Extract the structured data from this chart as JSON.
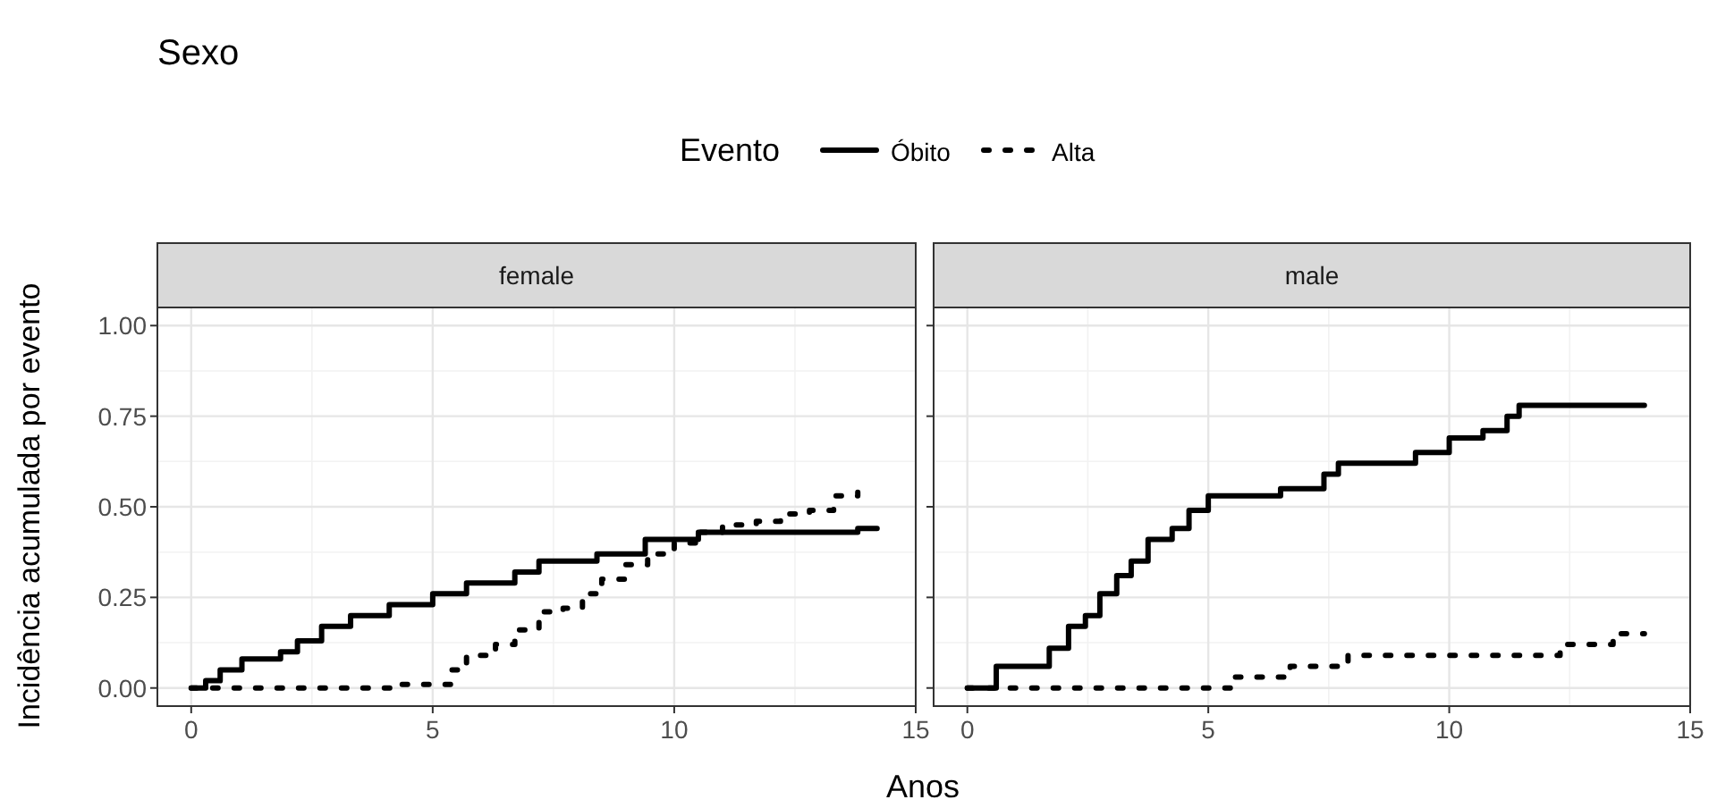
{
  "chart_data": [
    {
      "type": "step",
      "title": "Sexo",
      "subtitle": "female",
      "xlabel": "Anos",
      "ylabel": "Incidência acumulada por evento",
      "legend_title": "Evento",
      "legend": "top",
      "grid": true,
      "xlim": [
        -0.7,
        15
      ],
      "xticks": [
        0,
        5,
        10,
        15
      ],
      "ylim": [
        -0.05,
        1.05
      ],
      "yticks": [
        {
          "value": 0,
          "label": "0.00"
        },
        {
          "value": 0.25,
          "label": "0.25"
        },
        {
          "value": 0.5,
          "label": "0.50"
        },
        {
          "value": 0.75,
          "label": "0.75"
        },
        {
          "value": 1,
          "label": "1.00"
        }
      ],
      "series": [
        {
          "name": "Óbito",
          "color": "#000000",
          "line_style": "solid",
          "x": [
            0,
            0.3,
            0.6,
            1.05,
            1.85,
            2.2,
            2.7,
            3.3,
            4.1,
            5,
            5.7,
            6.7,
            7.2,
            8.4,
            9.4,
            10.5,
            13.8,
            14.2
          ],
          "values": [
            0,
            0.02,
            0.05,
            0.08,
            0.1,
            0.13,
            0.17,
            0.2,
            0.23,
            0.26,
            0.29,
            0.32,
            0.35,
            0.37,
            0.41,
            0.43,
            0.44,
            0.44
          ]
        },
        {
          "name": "Alta",
          "color": "#000000",
          "line_style": "dotted",
          "x": [
            0,
            4.2,
            5.4,
            5.7,
            6.3,
            6.7,
            7.2,
            7.7,
            8.1,
            8.5,
            9,
            9.45,
            10,
            10.5,
            11,
            11.7,
            12.2,
            12.8,
            13.3,
            13.8
          ],
          "values": [
            0,
            0.01,
            0.05,
            0.09,
            0.12,
            0.16,
            0.21,
            0.22,
            0.26,
            0.3,
            0.34,
            0.37,
            0.4,
            0.43,
            0.45,
            0.46,
            0.48,
            0.49,
            0.53,
            0.54
          ]
        }
      ]
    },
    {
      "type": "step",
      "subtitle": "male",
      "grid": true,
      "tick_labels": "x",
      "xlim": [
        -0.7,
        15
      ],
      "xticks": [
        0,
        5,
        10,
        15
      ],
      "ylim": [
        -0.05,
        1.05
      ],
      "yticks": [
        {
          "value": 0,
          "label": null
        },
        {
          "value": 0.25,
          "label": null
        },
        {
          "value": 0.5,
          "label": null
        },
        {
          "value": 0.75,
          "label": null
        },
        {
          "value": 1,
          "label": null
        }
      ],
      "series": [
        {
          "color": "#000000",
          "line_style": "solid",
          "x": [
            0,
            0.4,
            0.6,
            1.7,
            2.1,
            2.45,
            2.75,
            3.1,
            3.4,
            3.75,
            4.25,
            4.6,
            5,
            6.5,
            7.4,
            7.7,
            9.3,
            10,
            10.7,
            11.2,
            11.45,
            14.05
          ],
          "values": [
            0,
            0,
            0.06,
            0.11,
            0.17,
            0.2,
            0.26,
            0.31,
            0.35,
            0.41,
            0.44,
            0.49,
            0.53,
            0.55,
            0.59,
            0.62,
            0.65,
            0.69,
            0.71,
            0.75,
            0.78,
            0.78
          ]
        },
        {
          "color": "#000000",
          "line_style": "dotted",
          "x": [
            0,
            5.5,
            6.7,
            7.9,
            12.3,
            13.4,
            13.5,
            14.05
          ],
          "values": [
            0,
            0.03,
            0.06,
            0.09,
            0.12,
            0.13,
            0.15,
            0.15
          ]
        }
      ]
    }
  ]
}
